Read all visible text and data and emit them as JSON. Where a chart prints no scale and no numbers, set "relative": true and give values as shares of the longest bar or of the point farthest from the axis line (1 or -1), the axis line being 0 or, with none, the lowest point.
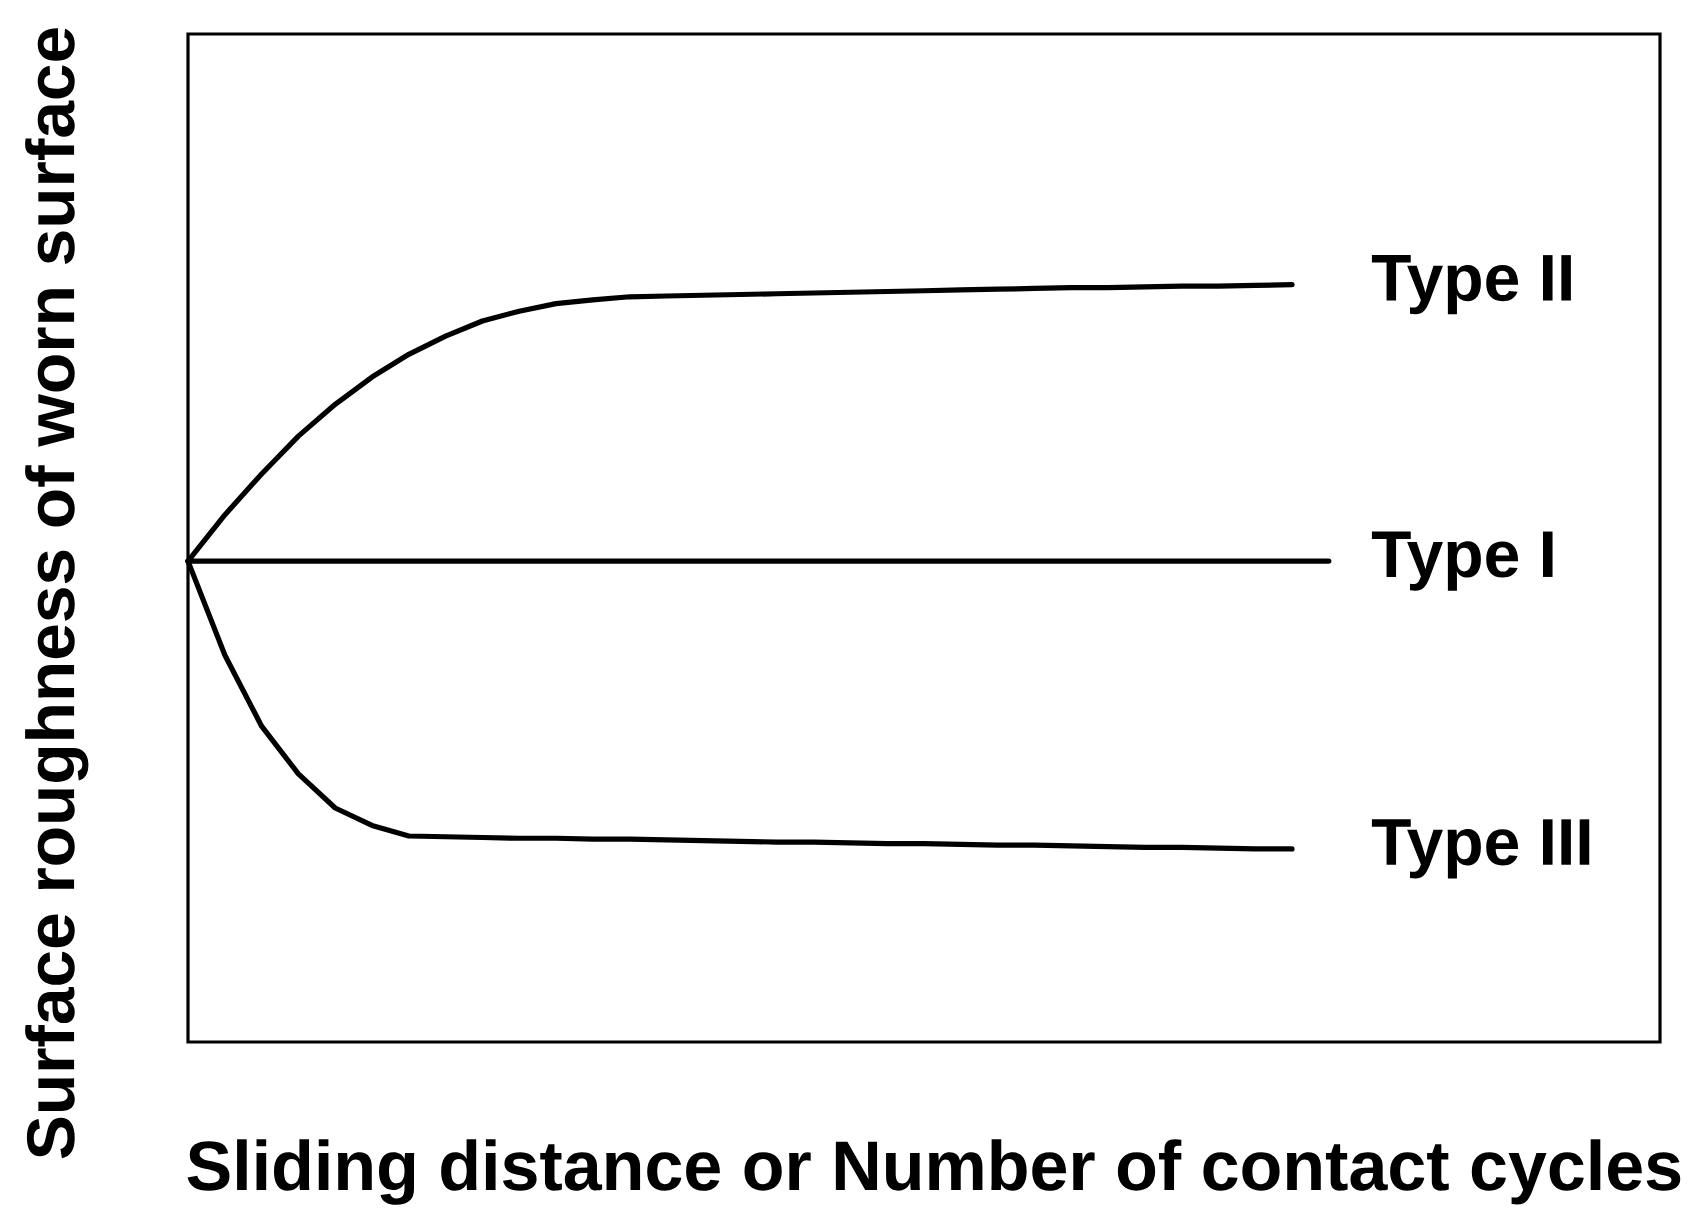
{
  "chart_data": {
    "type": "line",
    "relative": true,
    "xlabel": "Sliding distance or Number of contact cycles",
    "ylabel": "Surface roughness of worn surface",
    "categories": [
      null,
      null,
      null,
      null,
      null,
      null,
      null,
      null,
      null,
      null,
      null,
      null,
      null,
      null,
      null,
      null,
      null,
      null,
      null,
      null,
      null,
      null,
      null,
      null,
      null,
      null,
      null,
      null,
      null,
      null,
      null,
      null,
      null,
      null,
      null,
      null,
      null,
      null,
      null,
      null,
      null
    ],
    "series": [
      {
        "name": "Type II",
        "color": "#000000",
        "values": [
          0.635,
          0.696,
          0.75,
          0.8,
          0.842,
          0.878,
          0.908,
          0.932,
          0.952,
          0.965,
          0.975,
          0.98,
          0.984,
          0.985,
          0.986,
          0.987,
          0.988,
          0.989,
          0.99,
          0.991,
          0.992,
          0.993,
          0.994,
          0.995,
          0.996,
          0.996,
          0.997,
          0.998,
          0.998,
          0.999,
          1.0,
          null,
          null,
          null,
          null,
          null,
          null,
          null,
          null,
          null,
          null
        ]
      },
      {
        "name": "Type I",
        "color": "#000000",
        "values": [
          0.635,
          0.635,
          0.635,
          0.635,
          0.635,
          0.635,
          0.635,
          0.635,
          0.635,
          0.635,
          0.635,
          0.635,
          0.635,
          0.635,
          0.635,
          0.635,
          0.635,
          0.635,
          0.635,
          0.635,
          0.635,
          0.635,
          0.635,
          0.635,
          0.635,
          0.635,
          0.635,
          0.635,
          0.635,
          0.635,
          0.635,
          0.635,
          null,
          null,
          null,
          null,
          null,
          null,
          null,
          null,
          null
        ]
      },
      {
        "name": "Type III",
        "color": "#000000",
        "values": [
          0.635,
          0.511,
          0.417,
          0.354,
          0.309,
          0.286,
          0.272,
          0.271,
          0.27,
          0.269,
          0.269,
          0.268,
          0.268,
          0.267,
          0.266,
          0.265,
          0.264,
          0.264,
          0.263,
          0.262,
          0.262,
          0.261,
          0.26,
          0.26,
          0.259,
          0.258,
          0.257,
          0.257,
          0.256,
          0.255,
          0.255,
          null,
          null,
          null,
          null,
          null,
          null,
          null,
          null,
          null,
          null
        ]
      }
    ],
    "marker": "none",
    "line_style": "solid"
  }
}
